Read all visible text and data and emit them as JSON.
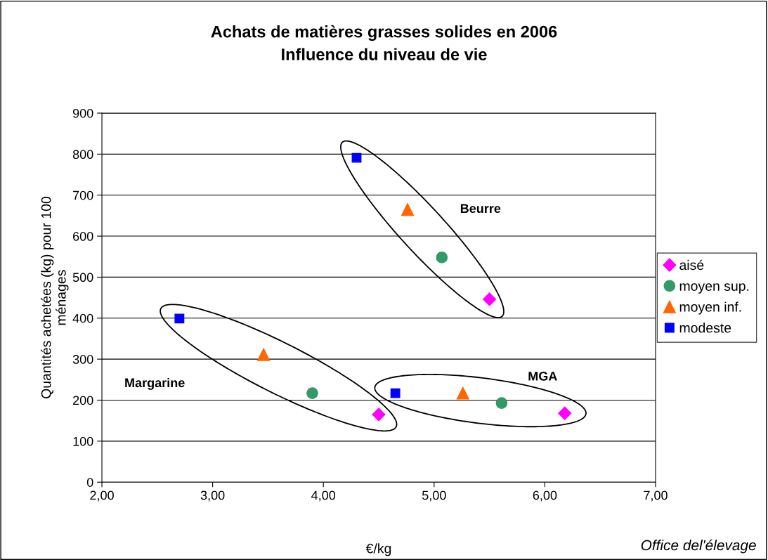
{
  "chart_data": {
    "type": "scatter",
    "title": "Achats de matières grasses solides en 2006\nInfluence du niveau de vie",
    "xlabel": "€/kg",
    "ylabel": "Quantités achetées (kg) pour 100\nménages",
    "series": [
      {
        "name": "aisé",
        "color": "#ff00ff",
        "marker": "diamond",
        "x": [
          5.5,
          4.5,
          6.18
        ],
        "values": [
          446,
          165,
          168
        ]
      },
      {
        "name": "moyen sup.",
        "color": "#339966",
        "marker": "circle",
        "x": [
          5.07,
          3.9,
          5.61
        ],
        "values": [
          548,
          217,
          193
        ]
      },
      {
        "name": "moyen inf.",
        "color": "#ff6600",
        "marker": "triangle",
        "x": [
          4.76,
          3.46,
          5.26
        ],
        "values": [
          665,
          311,
          217
        ]
      },
      {
        "name": "modeste",
        "color": "#0000ff",
        "marker": "square",
        "x": [
          4.3,
          2.7,
          4.65
        ],
        "values": [
          791,
          399,
          217
        ]
      }
    ],
    "xlim": [
      2,
      7
    ],
    "xticks": [
      {
        "value": 2,
        "label": "2,00"
      },
      {
        "value": 3,
        "label": "3,00"
      },
      {
        "value": 4,
        "label": "4,00"
      },
      {
        "value": 5,
        "label": "5,00"
      },
      {
        "value": 6,
        "label": "6,00"
      },
      {
        "value": 7,
        "label": "7,00"
      }
    ],
    "ylim": [
      0,
      900
    ],
    "yticks": [
      0,
      100,
      200,
      300,
      400,
      500,
      600,
      700,
      800,
      900
    ],
    "grid": "y",
    "legend": "right",
    "annotations": [
      "Beurre",
      "Margarine",
      "MGA",
      "Office del'élevage"
    ]
  }
}
